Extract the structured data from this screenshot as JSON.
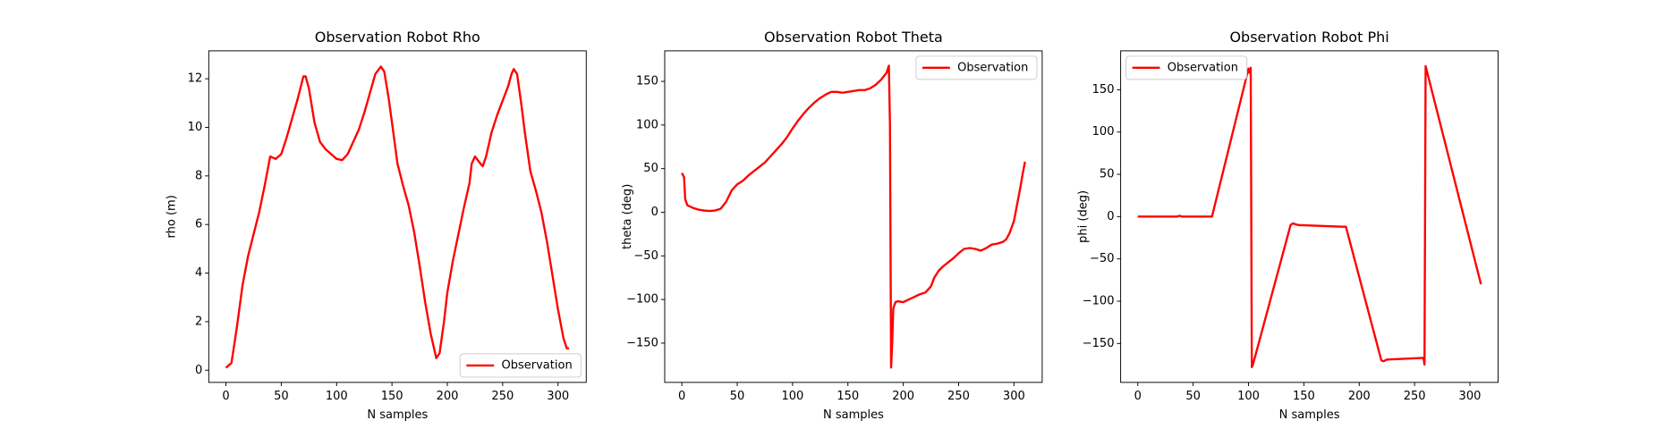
{
  "chart_data": [
    {
      "type": "line",
      "title": "Observation Robot Rho",
      "xlabel": "N samples",
      "ylabel": "rho (m)",
      "x": [
        0,
        5,
        10,
        15,
        20,
        25,
        30,
        35,
        40,
        45,
        50,
        55,
        60,
        65,
        70,
        72,
        75,
        80,
        85,
        90,
        95,
        100,
        105,
        110,
        115,
        120,
        125,
        130,
        135,
        140,
        143,
        147,
        150,
        155,
        160,
        165,
        170,
        175,
        180,
        185,
        190,
        193,
        197,
        200,
        205,
        210,
        215,
        220,
        222,
        225,
        230,
        232,
        235,
        240,
        245,
        250,
        255,
        258,
        260,
        263,
        267,
        270,
        275,
        280,
        285,
        290,
        295,
        300,
        305,
        308,
        310
      ],
      "series": [
        {
          "name": "Observation",
          "color": "#ff0000",
          "values": [
            0.1,
            0.3,
            1.8,
            3.5,
            4.7,
            5.6,
            6.5,
            7.6,
            8.8,
            8.7,
            8.9,
            9.6,
            10.4,
            11.2,
            12.1,
            12.1,
            11.6,
            10.2,
            9.4,
            9.1,
            8.9,
            8.7,
            8.65,
            8.9,
            9.4,
            9.9,
            10.6,
            11.4,
            12.2,
            12.5,
            12.3,
            11.2,
            10.2,
            8.5,
            7.6,
            6.8,
            5.7,
            4.3,
            2.8,
            1.5,
            0.5,
            0.7,
            2,
            3.2,
            4.5,
            5.6,
            6.7,
            7.7,
            8.5,
            8.8,
            8.5,
            8.4,
            8.8,
            9.8,
            10.5,
            11.1,
            11.7,
            12.2,
            12.4,
            12.2,
            10.9,
            9.8,
            8.2,
            7.4,
            6.5,
            5.3,
            3.9,
            2.5,
            1.3,
            0.9,
            0.9
          ]
        }
      ],
      "xlim": [
        -15.5,
        325.5
      ],
      "ylim": [
        -0.5,
        13.15
      ],
      "xticks": [
        0,
        50,
        100,
        150,
        200,
        250,
        300
      ],
      "yticks": [
        0,
        2,
        4,
        6,
        8,
        10,
        12
      ],
      "legend": "lower right"
    },
    {
      "type": "line",
      "title": "Observation Robot Theta",
      "xlabel": "N samples",
      "ylabel": "theta (deg)",
      "x": [
        0,
        2,
        3,
        5,
        10,
        15,
        20,
        25,
        30,
        35,
        40,
        45,
        50,
        55,
        60,
        65,
        70,
        75,
        80,
        85,
        90,
        95,
        100,
        105,
        110,
        115,
        120,
        125,
        130,
        135,
        140,
        145,
        150,
        155,
        160,
        165,
        170,
        175,
        180,
        185,
        187,
        188,
        189,
        190,
        191,
        193,
        195,
        200,
        205,
        210,
        215,
        220,
        225,
        228,
        232,
        236,
        240,
        245,
        250,
        255,
        260,
        265,
        270,
        275,
        280,
        285,
        290,
        293,
        296,
        300,
        303,
        306,
        308,
        310
      ],
      "series": [
        {
          "name": "Observation",
          "color": "#ff0000",
          "values": [
            45,
            40,
            15,
            8,
            5,
            3,
            2,
            1.5,
            2,
            4,
            12,
            25,
            32,
            36,
            42,
            47,
            52,
            57,
            64,
            71,
            78,
            86,
            96,
            105,
            113,
            120,
            126,
            131,
            135,
            138,
            138,
            137,
            138,
            139,
            140,
            140,
            142,
            146,
            152,
            160,
            168,
            100,
            -178,
            -150,
            -110,
            -103,
            -102,
            -103,
            -100,
            -97,
            -94,
            -92,
            -85,
            -75,
            -67,
            -62,
            -58,
            -53,
            -47,
            -42,
            -41,
            -42,
            -44,
            -41,
            -37,
            -36,
            -34,
            -31,
            -24,
            -10,
            10,
            30,
            45,
            58
          ]
        }
      ],
      "xlim": [
        -15.5,
        325.5
      ],
      "ylim": [
        -195,
        185
      ],
      "xticks": [
        0,
        50,
        100,
        150,
        200,
        250,
        300
      ],
      "yticks": [
        {
          "value": -150,
          "label": "−150"
        },
        {
          "value": -100,
          "label": "−100"
        },
        {
          "value": -50,
          "label": "−50"
        },
        0,
        50,
        100,
        150
      ],
      "legend": "upper right"
    },
    {
      "type": "line",
      "title": "Observation Robot Phi",
      "xlabel": "N samples",
      "ylabel": "phi (deg)",
      "x": [
        0,
        35,
        38,
        40,
        67,
        100,
        101,
        102,
        103,
        104,
        138,
        140,
        145,
        185,
        188,
        220,
        222,
        225,
        258,
        259,
        260,
        310
      ],
      "series": [
        {
          "name": "Observation",
          "color": "#ff0000",
          "values": [
            0,
            0,
            1,
            0,
            0,
            175,
            170,
            176,
            -178,
            -175,
            -10,
            -8,
            -10,
            -12,
            -12,
            -170,
            -171,
            -169,
            -167,
            -175,
            178,
            -80
          ]
        }
      ],
      "xlim": [
        -15.5,
        325.5
      ],
      "ylim": [
        -196,
        196
      ],
      "xticks": [
        0,
        50,
        100,
        150,
        200,
        250,
        300
      ],
      "yticks": [
        {
          "value": -150,
          "label": "−150"
        },
        {
          "value": -100,
          "label": "−100"
        },
        {
          "value": -50,
          "label": "−50"
        },
        0,
        50,
        100,
        150
      ],
      "legend": "upper left"
    }
  ]
}
